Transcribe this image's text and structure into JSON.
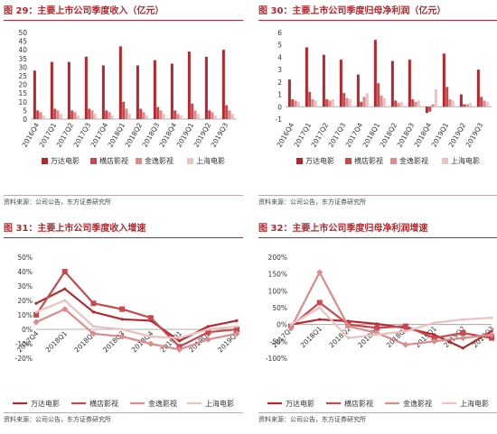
{
  "charts": [
    {
      "title": "图 29：主要上市公司季度收入（亿元）",
      "source": "资料来源：公司公告，东方证券研究所",
      "colors": [
        "#b3282d",
        "#c9484d",
        "#de8a8b",
        "#ecc1c1"
      ],
      "chart_data": {
        "type": "bar",
        "categories": [
          "2016Q4",
          "2017Q1",
          "2017Q2",
          "2017Q3",
          "2017Q4",
          "2018Q1",
          "2018Q2",
          "2018Q3",
          "2018Q4",
          "2019Q1",
          "2019Q2",
          "2019Q3"
        ],
        "ylim": [
          0,
          50
        ],
        "yticks": [
          0,
          5,
          10,
          15,
          20,
          25,
          30,
          35,
          40,
          45,
          50
        ],
        "series": [
          {
            "name": "万达电影",
            "values": [
              28,
              33,
              33,
              36,
              31,
              42,
              31,
              34,
              32,
              39,
              36,
              40
            ]
          },
          {
            "name": "横店影视",
            "values": [
              5,
              6,
              5,
              6,
              5,
              10,
              6,
              7,
              5,
              9,
              5,
              8
            ]
          },
          {
            "name": "金逸影视",
            "values": [
              4,
              5,
              4,
              5,
              4,
              6,
              4,
              5,
              3,
              5,
              4,
              5
            ]
          },
          {
            "name": "上海电影",
            "values": [
              2,
              3,
              2,
              3,
              2,
              3,
              2,
              3,
              2,
              3,
              2,
              3
            ]
          }
        ]
      }
    },
    {
      "title": "图 30：主要上市公司季度归母净利润（亿元）",
      "source": "资料来源：公司公告，东方证券研究所",
      "colors": [
        "#b3282d",
        "#c9484d",
        "#de8a8b",
        "#ecc1c1"
      ],
      "chart_data": {
        "type": "bar",
        "categories": [
          "2016Q4",
          "2017Q1",
          "2017Q2",
          "2017Q3",
          "2017Q4",
          "2018Q1",
          "2018Q2",
          "2018Q3",
          "2018Q4",
          "2019Q1",
          "2019Q2",
          "2019Q3"
        ],
        "ylim": [
          -1,
          6
        ],
        "yticks": [
          -1,
          0,
          1,
          2,
          3,
          4,
          5,
          6
        ],
        "series": [
          {
            "name": "万达电影",
            "values": [
              2.2,
              4.8,
              4.2,
              3.8,
              2.6,
              5.4,
              3.7,
              3.8,
              -0.5,
              4.3,
              1.0,
              3.0
            ]
          },
          {
            "name": "横店影视",
            "values": [
              0.6,
              1.2,
              0.6,
              1.1,
              0.4,
              1.9,
              0.5,
              0.6,
              -0.4,
              1.6,
              0.2,
              0.8
            ]
          },
          {
            "name": "金逸影视",
            "values": [
              0.5,
              0.6,
              0.5,
              0.7,
              0.8,
              0.9,
              0.3,
              0.4,
              0.2,
              0.6,
              0.2,
              0.5
            ]
          },
          {
            "name": "上海电影",
            "values": [
              0.4,
              0.5,
              0.6,
              0.6,
              1.1,
              0.7,
              0.4,
              0.5,
              1.4,
              0.5,
              0.3,
              0.4
            ]
          }
        ]
      }
    },
    {
      "title": "图 31：主要上市公司季度收入增速",
      "source": "资料来源：公司公告，东方证券研究所",
      "colors": [
        "#b3282d",
        "#c9484d",
        "#de8a8b",
        "#ecc1c1"
      ],
      "chart_data": {
        "type": "line",
        "categories": [
          "2017Q4",
          "2018Q1",
          "2018Q2",
          "2018Q3",
          "2018Q4",
          "2019Q1",
          "2019Q2",
          "2019Q3"
        ],
        "ylim": [
          -20,
          50
        ],
        "yticks": [
          "-20%",
          "-10%",
          "0%",
          "10%",
          "20%",
          "30%",
          "40%",
          "50%"
        ],
        "ytick_values": [
          -20,
          -10,
          0,
          10,
          20,
          30,
          40,
          50
        ],
        "series": [
          {
            "name": "万达电影",
            "values": [
              18,
              28,
              12,
              7,
              6,
              -8,
              2,
              6
            ]
          },
          {
            "name": "横店影视",
            "values": [
              10,
              40,
              18,
              14,
              8,
              -12,
              -2,
              0
            ]
          },
          {
            "name": "金逸影视",
            "values": [
              5,
              14,
              -3,
              -5,
              -10,
              -14,
              -7,
              -3
            ]
          },
          {
            "name": "上海电影",
            "values": [
              12,
              20,
              2,
              0,
              -5,
              -6,
              0,
              2
            ]
          }
        ]
      }
    },
    {
      "title": "图 32：主要上市公司季度归母净利润增速",
      "source": "资料来源：公司公告，东方证券研究所",
      "colors": [
        "#b3282d",
        "#c9484d",
        "#de8a8b",
        "#ecc1c1"
      ],
      "chart_data": {
        "type": "line",
        "categories": [
          "2017Q4",
          "2018Q1",
          "2018Q2",
          "2018Q3",
          "2018Q4",
          "2019Q1",
          "2019Q2",
          "2019Q3"
        ],
        "ylim": [
          -100,
          200
        ],
        "yticks": [
          "-100%",
          "-50%",
          "0%",
          "50%",
          "100%",
          "150%",
          "200%"
        ],
        "ytick_values": [
          -100,
          -50,
          0,
          50,
          100,
          150,
          200
        ],
        "series": [
          {
            "name": "万达电影",
            "values": [
              0,
              15,
              10,
              2,
              -10,
              -30,
              -70,
              -20
            ]
          },
          {
            "name": "横店影视",
            "values": [
              -5,
              65,
              0,
              -10,
              -5,
              -40,
              -25,
              -40
            ]
          },
          {
            "name": "金逸影视",
            "values": [
              -10,
              155,
              -5,
              -25,
              -60,
              -50,
              -40,
              -30
            ]
          },
          {
            "name": "上海电影",
            "values": [
              0,
              50,
              -40,
              -30,
              -20,
              5,
              15,
              20
            ]
          }
        ]
      }
    }
  ]
}
